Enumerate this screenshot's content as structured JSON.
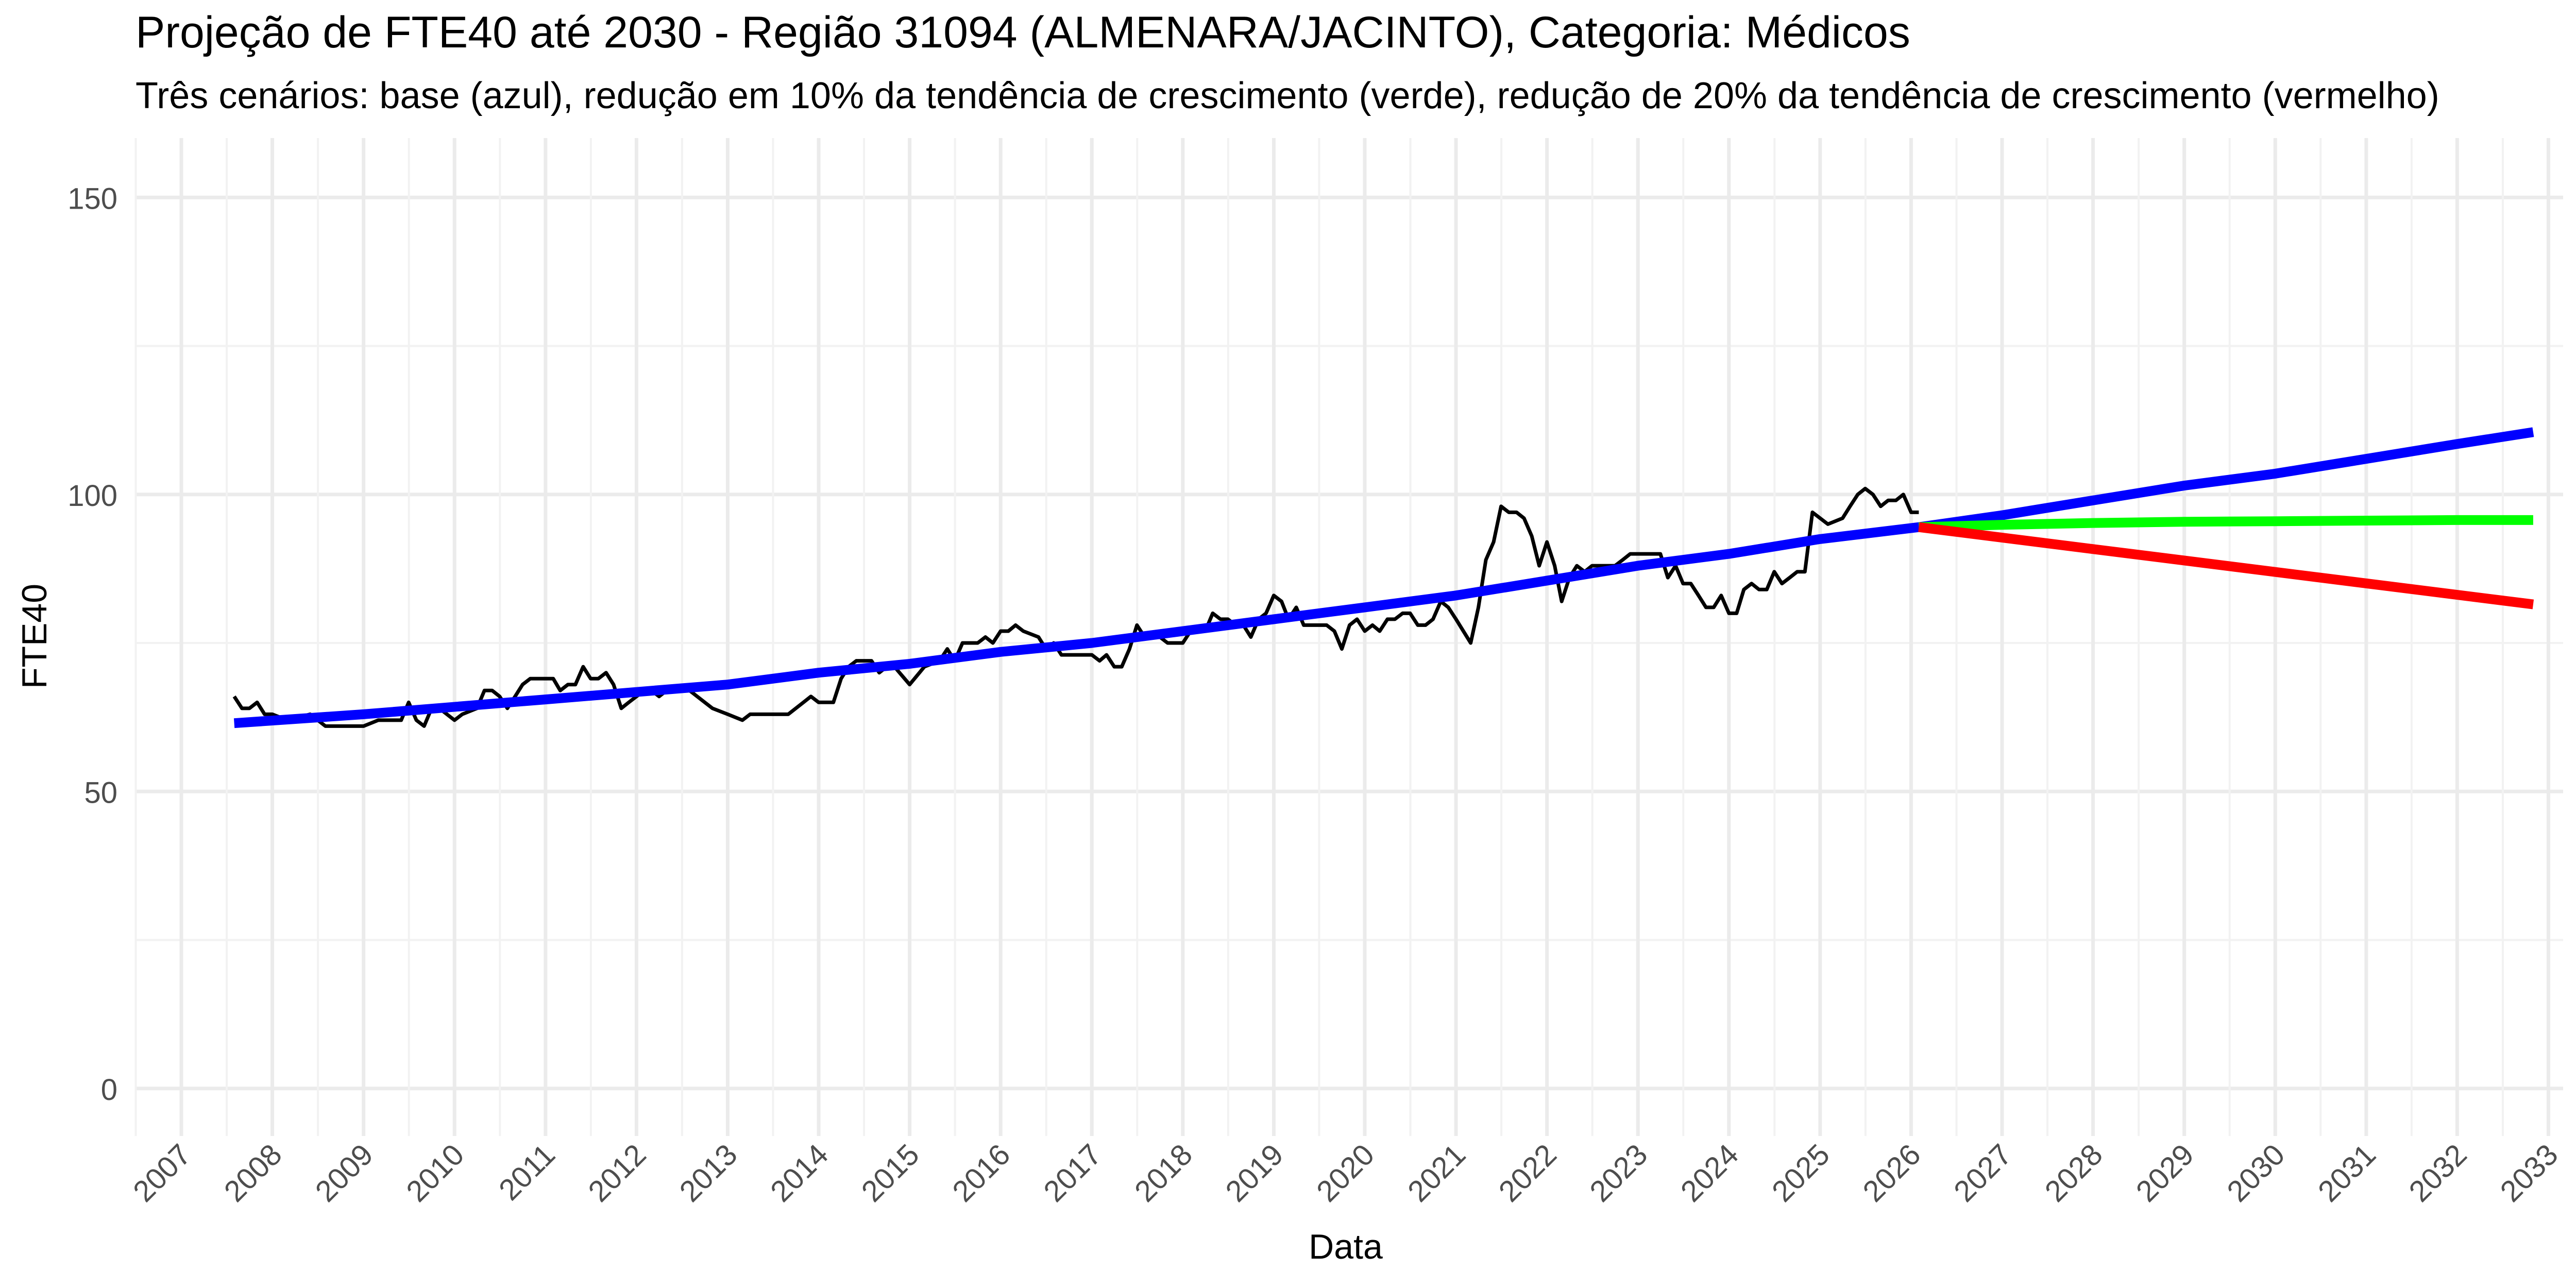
{
  "chart_data": {
    "type": "line",
    "title": "Projeção de FTE40 até 2030 - Região 31094 (ALMENARA/JACINTO), Categoria: Médicos",
    "subtitle": "Três cenários: base (azul), redução em 10% da tendência de crescimento (verde), redução de 20% da tendência de crescimento (vermelho)",
    "xlabel": "Data",
    "ylabel": "FTE40",
    "xlim": [
      "2006-07-01",
      "2033-03-01"
    ],
    "ylim": [
      -8,
      160
    ],
    "x_ticks": [
      "2007",
      "2008",
      "2009",
      "2010",
      "2011",
      "2012",
      "2013",
      "2014",
      "2015",
      "2016",
      "2017",
      "2018",
      "2019",
      "2020",
      "2021",
      "2022",
      "2023",
      "2024",
      "2025",
      "2026",
      "2027",
      "2028",
      "2029",
      "2030",
      "2031",
      "2032",
      "2033"
    ],
    "y_ticks": [
      0,
      50,
      100,
      150
    ],
    "grid": true,
    "legend": "none",
    "series": [
      {
        "color": "#000000",
        "style": "thin",
        "points": [
          [
            "2007-08-01",
            66
          ],
          [
            "2007-09-01",
            64
          ],
          [
            "2007-10-01",
            64
          ],
          [
            "2007-11-01",
            65
          ],
          [
            "2007-12-01",
            63
          ],
          [
            "2008-01-01",
            63
          ],
          [
            "2008-03-01",
            62
          ],
          [
            "2008-06-01",
            63
          ],
          [
            "2008-08-01",
            61
          ],
          [
            "2009-01-01",
            61
          ],
          [
            "2009-03-01",
            62
          ],
          [
            "2009-06-01",
            62
          ],
          [
            "2009-07-01",
            65
          ],
          [
            "2009-08-01",
            62
          ],
          [
            "2009-09-01",
            61
          ],
          [
            "2009-10-01",
            64
          ],
          [
            "2009-11-01",
            64
          ],
          [
            "2010-01-01",
            62
          ],
          [
            "2010-02-01",
            63
          ],
          [
            "2010-04-01",
            64
          ],
          [
            "2010-05-01",
            67
          ],
          [
            "2010-06-01",
            67
          ],
          [
            "2010-07-01",
            66
          ],
          [
            "2010-08-01",
            64
          ],
          [
            "2010-09-01",
            66
          ],
          [
            "2010-10-01",
            68
          ],
          [
            "2010-11-01",
            69
          ],
          [
            "2011-02-01",
            69
          ],
          [
            "2011-03-01",
            67
          ],
          [
            "2011-04-01",
            68
          ],
          [
            "2011-05-01",
            68
          ],
          [
            "2011-06-01",
            71
          ],
          [
            "2011-07-01",
            69
          ],
          [
            "2011-08-01",
            69
          ],
          [
            "2011-09-01",
            70
          ],
          [
            "2011-10-01",
            68
          ],
          [
            "2011-11-01",
            64
          ],
          [
            "2011-12-01",
            65
          ],
          [
            "2012-02-01",
            67
          ],
          [
            "2012-03-01",
            67
          ],
          [
            "2012-04-01",
            66
          ],
          [
            "2012-05-01",
            67
          ],
          [
            "2012-07-01",
            67
          ],
          [
            "2012-08-01",
            67
          ],
          [
            "2012-10-01",
            65
          ],
          [
            "2012-11-01",
            64
          ],
          [
            "2013-01-01",
            63
          ],
          [
            "2013-03-01",
            62
          ],
          [
            "2013-04-01",
            63
          ],
          [
            "2013-09-01",
            63
          ],
          [
            "2013-11-01",
            65
          ],
          [
            "2013-12-01",
            66
          ],
          [
            "2014-01-01",
            65
          ],
          [
            "2014-03-01",
            65
          ],
          [
            "2014-04-01",
            69
          ],
          [
            "2014-05-01",
            71
          ],
          [
            "2014-06-01",
            72
          ],
          [
            "2014-08-01",
            72
          ],
          [
            "2014-09-01",
            70
          ],
          [
            "2014-10-01",
            71
          ],
          [
            "2014-11-01",
            71
          ],
          [
            "2015-01-01",
            68
          ],
          [
            "2015-03-01",
            71
          ],
          [
            "2015-05-01",
            72
          ],
          [
            "2015-06-01",
            74
          ],
          [
            "2015-07-01",
            72
          ],
          [
            "2015-08-01",
            75
          ],
          [
            "2015-10-01",
            75
          ],
          [
            "2015-11-01",
            76
          ],
          [
            "2015-12-01",
            75
          ],
          [
            "2016-01-01",
            77
          ],
          [
            "2016-02-01",
            77
          ],
          [
            "2016-03-01",
            78
          ],
          [
            "2016-04-01",
            77
          ],
          [
            "2016-06-01",
            76
          ],
          [
            "2016-07-01",
            74
          ],
          [
            "2016-08-01",
            75
          ],
          [
            "2016-09-01",
            73
          ],
          [
            "2017-01-01",
            73
          ],
          [
            "2017-02-01",
            72
          ],
          [
            "2017-03-01",
            73
          ],
          [
            "2017-04-01",
            71
          ],
          [
            "2017-05-01",
            71
          ],
          [
            "2017-06-01",
            74
          ],
          [
            "2017-07-01",
            78
          ],
          [
            "2017-08-01",
            76
          ],
          [
            "2017-10-01",
            76
          ],
          [
            "2017-11-01",
            75
          ],
          [
            "2018-01-01",
            75
          ],
          [
            "2018-02-01",
            77
          ],
          [
            "2018-04-01",
            77
          ],
          [
            "2018-05-01",
            80
          ],
          [
            "2018-06-01",
            79
          ],
          [
            "2018-07-01",
            79
          ],
          [
            "2018-08-01",
            78
          ],
          [
            "2018-09-01",
            78
          ],
          [
            "2018-10-01",
            76
          ],
          [
            "2018-11-01",
            79
          ],
          [
            "2018-12-01",
            80
          ],
          [
            "2019-01-01",
            83
          ],
          [
            "2019-02-01",
            82
          ],
          [
            "2019-03-01",
            79
          ],
          [
            "2019-04-01",
            81
          ],
          [
            "2019-05-01",
            78
          ],
          [
            "2019-08-01",
            78
          ],
          [
            "2019-09-01",
            77
          ],
          [
            "2019-10-01",
            74
          ],
          [
            "2019-11-01",
            78
          ],
          [
            "2019-12-01",
            79
          ],
          [
            "2020-01-01",
            77
          ],
          [
            "2020-02-01",
            78
          ],
          [
            "2020-03-01",
            77
          ],
          [
            "2020-04-01",
            79
          ],
          [
            "2020-05-01",
            79
          ],
          [
            "2020-06-01",
            80
          ],
          [
            "2020-07-01",
            80
          ],
          [
            "2020-08-01",
            78
          ],
          [
            "2020-09-01",
            78
          ],
          [
            "2020-10-01",
            79
          ],
          [
            "2020-11-01",
            82
          ],
          [
            "2020-12-01",
            81
          ],
          [
            "2021-01-01",
            79
          ],
          [
            "2021-03-01",
            75
          ],
          [
            "2021-04-01",
            81
          ],
          [
            "2021-05-01",
            89
          ],
          [
            "2021-06-01",
            92
          ],
          [
            "2021-07-01",
            98
          ],
          [
            "2021-08-01",
            97
          ],
          [
            "2021-09-01",
            97
          ],
          [
            "2021-10-01",
            96
          ],
          [
            "2021-11-01",
            93
          ],
          [
            "2021-12-01",
            88
          ],
          [
            "2022-01-01",
            92
          ],
          [
            "2022-02-01",
            88
          ],
          [
            "2022-03-01",
            82
          ],
          [
            "2022-04-01",
            86
          ],
          [
            "2022-05-01",
            88
          ],
          [
            "2022-06-01",
            87
          ],
          [
            "2022-07-01",
            88
          ],
          [
            "2022-08-01",
            88
          ],
          [
            "2022-10-01",
            88
          ],
          [
            "2022-11-01",
            89
          ],
          [
            "2022-12-01",
            90
          ],
          [
            "2023-04-01",
            90
          ],
          [
            "2023-05-01",
            86
          ],
          [
            "2023-06-01",
            88
          ],
          [
            "2023-07-01",
            85
          ],
          [
            "2023-08-01",
            85
          ],
          [
            "2023-09-01",
            83
          ],
          [
            "2023-10-01",
            81
          ],
          [
            "2023-11-01",
            81
          ],
          [
            "2023-12-01",
            83
          ],
          [
            "2024-01-01",
            80
          ],
          [
            "2024-02-01",
            80
          ],
          [
            "2024-03-01",
            84
          ],
          [
            "2024-04-01",
            85
          ],
          [
            "2024-05-01",
            84
          ],
          [
            "2024-06-01",
            84
          ],
          [
            "2024-07-01",
            87
          ],
          [
            "2024-08-01",
            85
          ],
          [
            "2024-09-01",
            86
          ],
          [
            "2024-10-01",
            87
          ],
          [
            "2024-11-01",
            87
          ],
          [
            "2024-12-01",
            97
          ],
          [
            "2025-01-01",
            96
          ],
          [
            "2025-02-01",
            95
          ],
          [
            "2025-04-01",
            96
          ],
          [
            "2025-05-01",
            98
          ],
          [
            "2025-06-01",
            100
          ],
          [
            "2025-07-01",
            101
          ],
          [
            "2025-08-01",
            100
          ],
          [
            "2025-09-01",
            98
          ],
          [
            "2025-10-01",
            99
          ],
          [
            "2025-11-01",
            99
          ],
          [
            "2025-12-01",
            100
          ],
          [
            "2026-01-01",
            97
          ],
          [
            "2026-02-01",
            97
          ]
        ]
      },
      {
        "color": "#0000ff",
        "style": "thick",
        "points": [
          [
            "2007-08-01",
            61.5
          ],
          [
            "2009-01-01",
            63
          ],
          [
            "2011-01-01",
            65.5
          ],
          [
            "2013-01-01",
            68
          ],
          [
            "2014-01-01",
            70
          ],
          [
            "2015-01-01",
            71.5
          ],
          [
            "2016-01-01",
            73.5
          ],
          [
            "2017-01-01",
            75
          ],
          [
            "2018-01-01",
            77
          ],
          [
            "2019-01-01",
            79
          ],
          [
            "2020-01-01",
            81
          ],
          [
            "2021-01-01",
            83
          ],
          [
            "2022-01-01",
            85.5
          ],
          [
            "2023-01-01",
            88
          ],
          [
            "2024-01-01",
            90
          ],
          [
            "2025-01-01",
            92.5
          ],
          [
            "2026-02-01",
            94.5
          ],
          [
            "2027-01-01",
            96.5
          ],
          [
            "2028-01-01",
            99
          ],
          [
            "2029-01-01",
            101.5
          ],
          [
            "2030-01-01",
            103.5
          ],
          [
            "2031-01-01",
            106
          ],
          [
            "2032-01-01",
            108.5
          ],
          [
            "2032-11-01",
            110.5
          ]
        ]
      },
      {
        "color": "#00ff00",
        "style": "thick",
        "points": [
          [
            "2026-02-01",
            94.5
          ],
          [
            "2027-01-01",
            94.9
          ],
          [
            "2028-01-01",
            95.2
          ],
          [
            "2029-01-01",
            95.4
          ],
          [
            "2030-01-01",
            95.5
          ],
          [
            "2031-01-01",
            95.6
          ],
          [
            "2032-01-01",
            95.7
          ],
          [
            "2032-11-01",
            95.7
          ]
        ]
      },
      {
        "color": "#ff0000",
        "style": "thick",
        "points": [
          [
            "2026-02-01",
            94.5
          ],
          [
            "2032-11-01",
            81.5
          ]
        ]
      }
    ]
  }
}
